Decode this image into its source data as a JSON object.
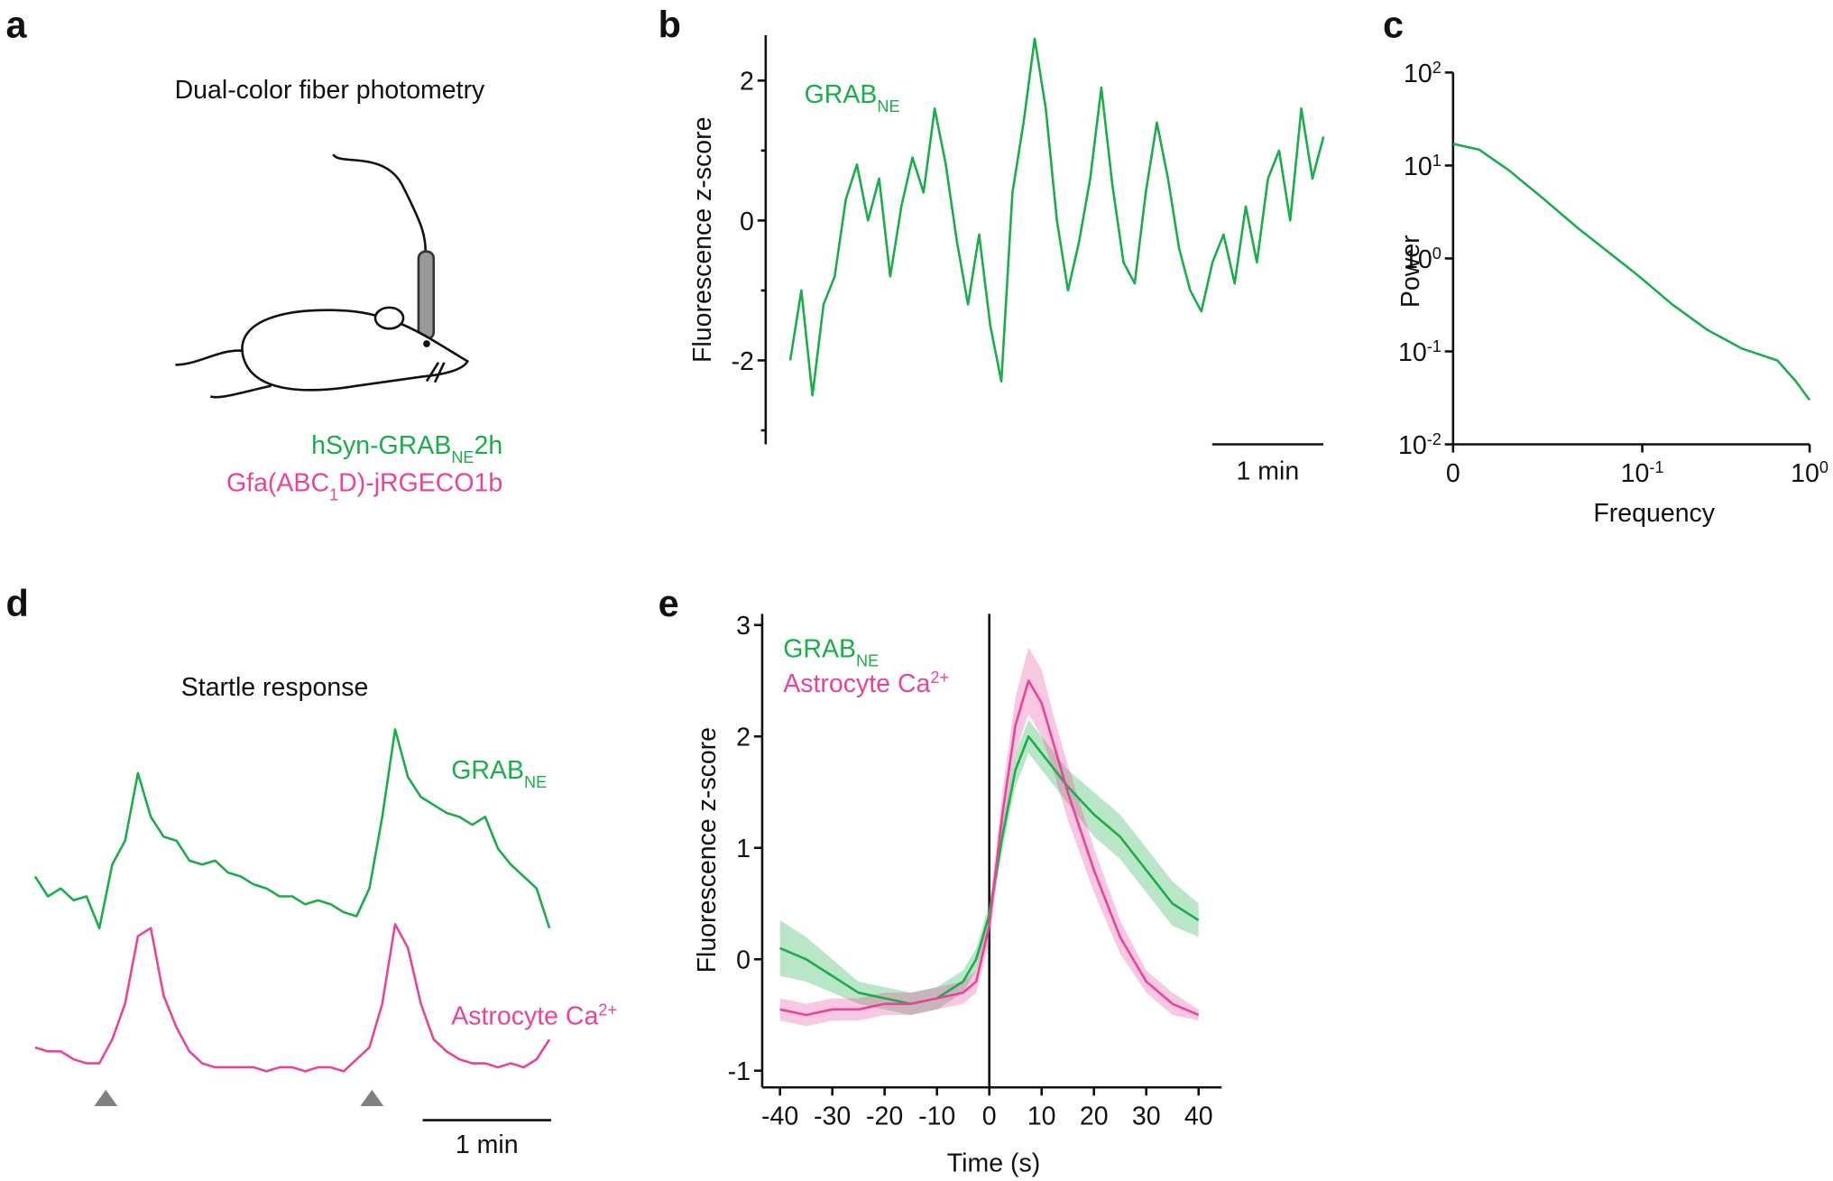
{
  "diagram": {
    "label": "a",
    "title": "Dual-color fiber photometry",
    "constructs": [
      {
        "color": "#1aad49",
        "text": [
          {
            "text": "hSyn-GRAB"
          },
          {
            "text": "NE",
            "sub": true
          },
          {
            "text": "2h"
          }
        ]
      },
      {
        "color": "#e8449a",
        "text": [
          {
            "text": "Gfa(ABC"
          },
          {
            "text": "1",
            "sub": true
          },
          {
            "text": "D)-jRGECO1b"
          }
        ]
      }
    ]
  },
  "chart_data": [
    {
      "label": "b",
      "type": "line",
      "ylabel": "Fluorescence z-score",
      "x": [
        0,
        0.1,
        0.2,
        0.3,
        0.4,
        0.5,
        0.6,
        0.7,
        0.8,
        0.9,
        1.0,
        1.1,
        1.2,
        1.3,
        1.4,
        1.5,
        1.6,
        1.7,
        1.8,
        1.9,
        2.0,
        2.1,
        2.2,
        2.3,
        2.4,
        2.5,
        2.6,
        2.7,
        2.8,
        2.9,
        3.0,
        3.1,
        3.2,
        3.3,
        3.4,
        3.5,
        3.6,
        3.7,
        3.8,
        3.9,
        4.0,
        4.1,
        4.2,
        4.3,
        4.4,
        4.5,
        4.6,
        4.7,
        4.8
      ],
      "series": [
        {
          "name": [
            {
              "text": "GRAB"
            },
            {
              "text": "NE",
              "sub": true
            }
          ],
          "color": "#1aad49",
          "values": [
            -2.0,
            -1.0,
            -2.5,
            -1.2,
            -0.8,
            0.3,
            0.8,
            0.0,
            0.6,
            -0.8,
            0.2,
            0.9,
            0.4,
            1.6,
            0.8,
            -0.3,
            -1.2,
            -0.2,
            -1.5,
            -2.3,
            0.4,
            1.4,
            2.6,
            1.6,
            0.0,
            -1.0,
            -0.3,
            0.6,
            1.9,
            0.5,
            -0.6,
            -0.9,
            0.4,
            1.4,
            0.6,
            -0.4,
            -1.0,
            -1.3,
            -0.6,
            -0.2,
            -0.9,
            0.2,
            -0.6,
            0.6,
            1.0,
            0.0,
            1.6,
            0.6,
            1.2
          ]
        }
      ],
      "xlim": [
        0,
        4.84
      ],
      "ylim": [
        -3.2,
        2.65
      ],
      "yticks": [
        -2,
        0,
        2
      ],
      "minor_yticks": [
        -3,
        -1,
        1
      ],
      "scalebar": {
        "length": 1,
        "label": "1 min"
      }
    },
    {
      "label": "c",
      "type": "line",
      "xlabel": "Frequency",
      "ylabel": "Power",
      "xlog": true,
      "ylog": true,
      "x": [
        0.0074,
        0.0106,
        0.0158,
        0.0256,
        0.0415,
        0.062,
        0.093,
        0.151,
        0.244,
        0.395,
        0.641,
        0.817,
        1.0
      ],
      "series": [
        {
          "color": "#1aad49",
          "values": [
            17.1,
            14.8,
            9.0,
            4.4,
            2.1,
            1.19,
            0.67,
            0.32,
            0.171,
            0.107,
            0.08,
            0.049,
            0.03
          ]
        }
      ],
      "xlim": [
        0.0074,
        1
      ],
      "ylim": [
        0.01,
        100
      ],
      "xticks": [
        {
          "value": 0.0074,
          "label": "0"
        },
        {
          "value": 0.1,
          "label": "10",
          "exponent": "-1"
        },
        {
          "value": 1,
          "label": "10",
          "exponent": "0"
        }
      ],
      "yticks": [
        {
          "value": 0.01,
          "label": "10",
          "exponent": "-2"
        },
        {
          "value": 0.1,
          "label": "10",
          "exponent": "-1"
        },
        {
          "value": 1,
          "label": "10",
          "exponent": "0"
        },
        {
          "value": 10,
          "label": "10",
          "exponent": "1"
        },
        {
          "value": 100,
          "label": "10",
          "exponent": "2"
        }
      ]
    },
    {
      "label": "d",
      "type": "line",
      "title": "Startle response",
      "x": [
        0,
        0.1,
        0.2,
        0.3,
        0.4,
        0.5,
        0.6,
        0.7,
        0.8,
        0.9,
        1.0,
        1.1,
        1.2,
        1.3,
        1.4,
        1.5,
        1.6,
        1.7,
        1.8,
        1.9,
        2.0,
        2.1,
        2.2,
        2.3,
        2.4,
        2.5,
        2.6,
        2.7,
        2.8,
        2.9,
        3.0,
        3.1,
        3.2,
        3.3,
        3.4,
        3.5,
        3.6,
        3.7,
        3.8,
        3.9,
        4.0
      ],
      "series": [
        {
          "name": [
            {
              "text": "GRAB"
            },
            {
              "text": "NE",
              "sub": true
            }
          ],
          "color": "#1aad49",
          "values": [
            5.6,
            5.1,
            5.3,
            5.0,
            5.1,
            4.3,
            5.9,
            6.5,
            8.2,
            7.1,
            6.6,
            6.5,
            6.0,
            5.9,
            6.0,
            5.7,
            5.6,
            5.4,
            5.3,
            5.1,
            5.1,
            4.9,
            5.0,
            4.9,
            4.7,
            4.6,
            5.3,
            7.1,
            9.3,
            8.1,
            7.6,
            7.4,
            7.2,
            7.1,
            6.9,
            7.1,
            6.3,
            5.9,
            5.6,
            5.3,
            4.3
          ]
        },
        {
          "name": [
            {
              "text": "Astrocyte Ca"
            },
            {
              "text": "2+",
              "sup": true
            }
          ],
          "color": "#e8449a",
          "values": [
            1.3,
            1.2,
            1.2,
            1.0,
            0.9,
            0.9,
            1.5,
            2.4,
            4.1,
            4.3,
            2.6,
            1.8,
            1.2,
            0.9,
            0.8,
            0.8,
            0.8,
            0.8,
            0.7,
            0.8,
            0.8,
            0.7,
            0.8,
            0.8,
            0.7,
            1.0,
            1.3,
            2.4,
            4.4,
            3.8,
            2.4,
            1.5,
            1.2,
            1.0,
            0.9,
            0.9,
            0.8,
            0.9,
            0.8,
            1.0,
            1.5
          ]
        }
      ],
      "markers": [
        0.55,
        2.62
      ],
      "marker_color": "#808080",
      "xlim": [
        0,
        4.05
      ],
      "ylim": [
        0,
        10
      ],
      "scalebar": {
        "length": 1,
        "label": "1 min"
      }
    },
    {
      "label": "e",
      "type": "line",
      "xlabel": "Time (s)",
      "ylabel": "Fluorescence z-score",
      "x": [
        -40,
        -35,
        -30,
        -25,
        -20,
        -15,
        -10,
        -5,
        -2.5,
        0,
        2.5,
        5,
        7.5,
        10,
        12.5,
        15,
        20,
        25,
        30,
        35,
        40
      ],
      "series": [
        {
          "name": [
            {
              "text": "GRAB"
            },
            {
              "text": "NE",
              "sub": true
            }
          ],
          "color": "#1aad49",
          "values": [
            0.1,
            0.0,
            -0.15,
            -0.3,
            -0.35,
            -0.4,
            -0.35,
            -0.2,
            0.0,
            0.4,
            1.1,
            1.7,
            2.0,
            1.85,
            1.7,
            1.55,
            1.3,
            1.1,
            0.8,
            0.5,
            0.35
          ],
          "error": [
            0.25,
            0.2,
            0.15,
            0.1,
            0.1,
            0.1,
            0.1,
            0.1,
            0.1,
            0.1,
            0.12,
            0.15,
            0.15,
            0.15,
            0.15,
            0.15,
            0.2,
            0.2,
            0.2,
            0.2,
            0.15
          ]
        },
        {
          "name": [
            {
              "text": "Astrocyte Ca"
            },
            {
              "text": "2+",
              "sup": true
            }
          ],
          "color": "#e8449a",
          "values": [
            -0.45,
            -0.5,
            -0.45,
            -0.45,
            -0.4,
            -0.4,
            -0.35,
            -0.3,
            -0.2,
            0.3,
            1.3,
            2.1,
            2.5,
            2.3,
            1.9,
            1.5,
            0.8,
            0.2,
            -0.2,
            -0.4,
            -0.5
          ],
          "error": [
            0.1,
            0.1,
            0.1,
            0.1,
            0.1,
            0.1,
            0.1,
            0.1,
            0.1,
            0.15,
            0.2,
            0.25,
            0.3,
            0.3,
            0.25,
            0.25,
            0.2,
            0.15,
            0.1,
            0.1,
            0.05
          ]
        }
      ],
      "vline": 0,
      "xlim": [
        -43.4,
        44.4
      ],
      "ylim": [
        -1.15,
        3.1
      ],
      "xticks": [
        -40,
        -30,
        -20,
        -10,
        0,
        10,
        20,
        30,
        40
      ],
      "yticks": [
        -1,
        0,
        1,
        2,
        3
      ]
    }
  ]
}
